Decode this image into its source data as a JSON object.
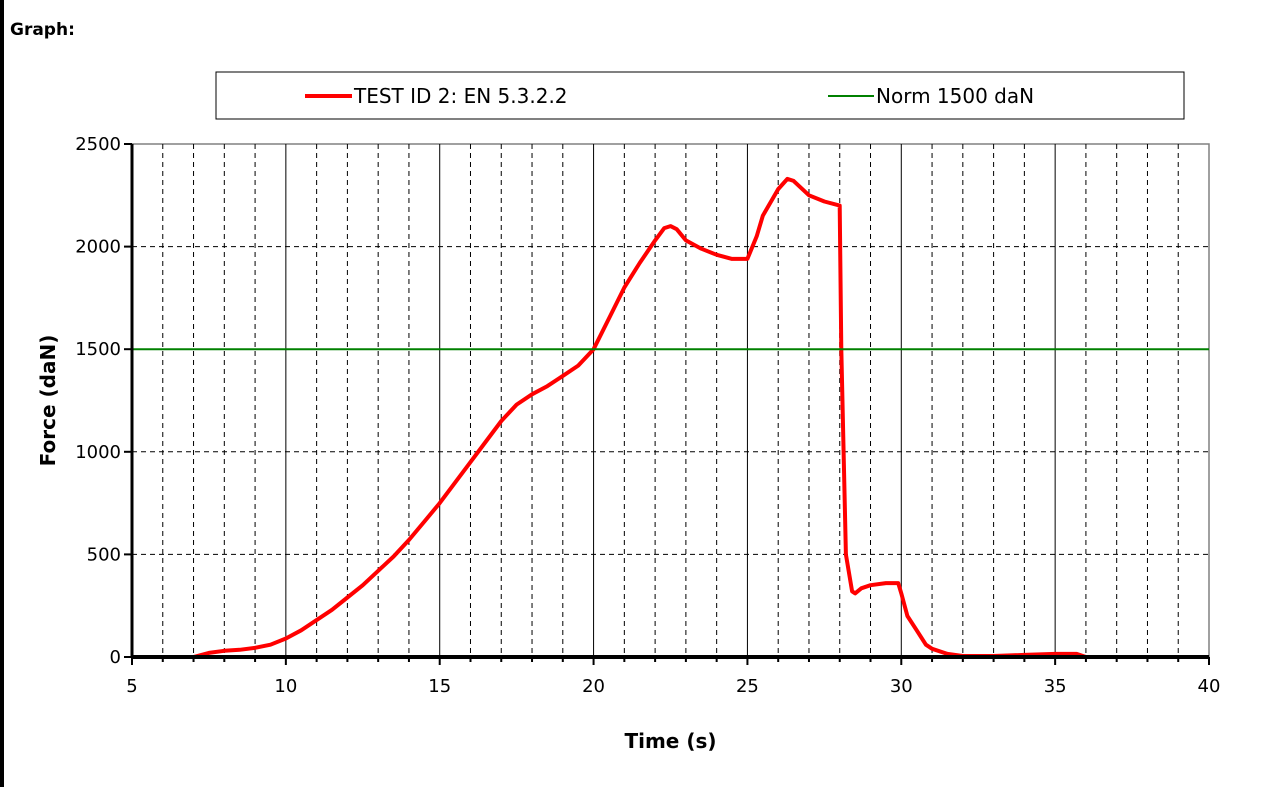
{
  "page": {
    "section_label": "Graph:"
  },
  "chart_data": {
    "type": "line",
    "title": "",
    "xlabel": "Time (s)",
    "ylabel": "Force (daN)",
    "xlim": [
      5,
      40
    ],
    "ylim": [
      0,
      2500
    ],
    "x_major_ticks": [
      5,
      10,
      15,
      20,
      25,
      30,
      35,
      40
    ],
    "x_minor_step": 1,
    "y_ticks": [
      0,
      500,
      1000,
      1500,
      2000,
      2500
    ],
    "grid": true,
    "legend_position": "top",
    "series": [
      {
        "name": "TEST ID 2: EN 5.3.2.2",
        "color": "#ff0000",
        "points": [
          [
            5,
            0
          ],
          [
            7,
            0
          ],
          [
            7.5,
            20
          ],
          [
            8,
            30
          ],
          [
            8.5,
            35
          ],
          [
            9,
            45
          ],
          [
            9.5,
            60
          ],
          [
            10,
            90
          ],
          [
            10.5,
            130
          ],
          [
            11,
            180
          ],
          [
            11.5,
            230
          ],
          [
            12,
            290
          ],
          [
            12.5,
            350
          ],
          [
            13,
            420
          ],
          [
            13.5,
            490
          ],
          [
            14,
            570
          ],
          [
            14.5,
            660
          ],
          [
            15,
            750
          ],
          [
            15.5,
            850
          ],
          [
            16,
            950
          ],
          [
            16.5,
            1050
          ],
          [
            17,
            1150
          ],
          [
            17.5,
            1230
          ],
          [
            18,
            1280
          ],
          [
            18.5,
            1320
          ],
          [
            19,
            1370
          ],
          [
            19.5,
            1420
          ],
          [
            20,
            1500
          ],
          [
            20.5,
            1650
          ],
          [
            21,
            1800
          ],
          [
            21.5,
            1920
          ],
          [
            22,
            2030
          ],
          [
            22.3,
            2090
          ],
          [
            22.5,
            2100
          ],
          [
            22.7,
            2085
          ],
          [
            23,
            2030
          ],
          [
            23.5,
            1990
          ],
          [
            24,
            1960
          ],
          [
            24.5,
            1940
          ],
          [
            25,
            1940
          ],
          [
            25.3,
            2050
          ],
          [
            25.5,
            2150
          ],
          [
            26,
            2280
          ],
          [
            26.3,
            2330
          ],
          [
            26.5,
            2320
          ],
          [
            27,
            2250
          ],
          [
            27.5,
            2220
          ],
          [
            28,
            2200
          ],
          [
            28.05,
            1500
          ],
          [
            28.2,
            500
          ],
          [
            28.4,
            320
          ],
          [
            28.5,
            310
          ],
          [
            28.7,
            335
          ],
          [
            29,
            350
          ],
          [
            29.5,
            360
          ],
          [
            29.9,
            360
          ],
          [
            30,
            310
          ],
          [
            30.2,
            200
          ],
          [
            30.5,
            130
          ],
          [
            30.8,
            60
          ],
          [
            31,
            40
          ],
          [
            31.5,
            15
          ],
          [
            32,
            5
          ],
          [
            33,
            5
          ],
          [
            34,
            10
          ],
          [
            35,
            15
          ],
          [
            35.7,
            15
          ],
          [
            36,
            0
          ],
          [
            38,
            0
          ]
        ]
      },
      {
        "name": "Norm 1500 daN",
        "color": "#008000",
        "constant": 1500
      }
    ]
  }
}
